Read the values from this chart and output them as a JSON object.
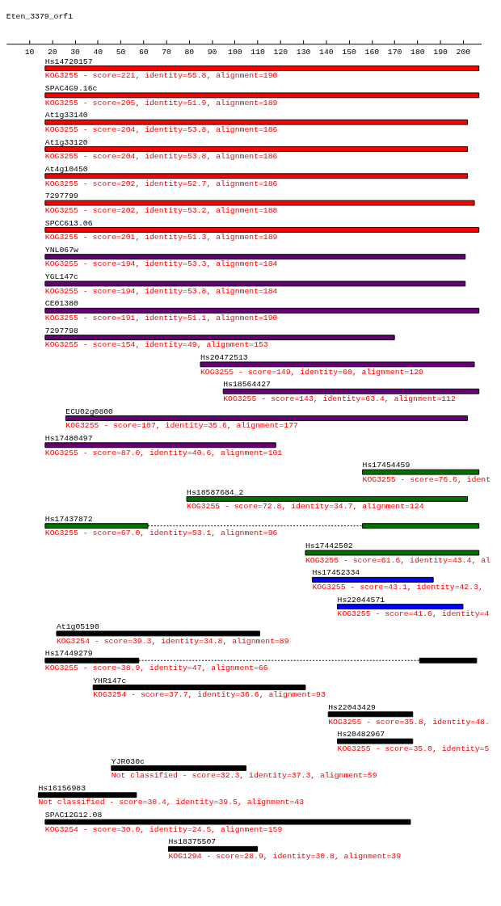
{
  "chart_data": {
    "type": "bar",
    "orientation": "horizontal",
    "title": "Eten_3379_orf1",
    "categories": [
      "Hs14720157",
      "SPAC4G9.16c",
      "At1g33140",
      "At1g33120",
      "At4g10450",
      "7297799",
      "SPCC613.06",
      "YNL067w",
      "YGL147c",
      "CE01380",
      "7297798",
      "Hs20472513",
      "Hs18564427",
      "ECU02g0800",
      "Hs17480497",
      "Hs17454459",
      "Hs18587684_2",
      "Hs17437872",
      "Hs17442502",
      "Hs17452334",
      "Hs22044571",
      "At1g05190",
      "Hs17449279",
      "YHR147c",
      "Hs22043429",
      "Hs20482967",
      "YJR030c",
      "Hs16156983",
      "SPAC12G12.08",
      "Hs18375507"
    ],
    "series": [
      {
        "base": [
          17,
          17,
          17,
          17,
          17,
          17,
          17,
          17,
          17,
          17,
          17,
          85,
          95,
          26,
          17,
          156,
          79,
          17,
          131,
          134,
          145,
          22,
          17,
          38,
          141,
          145,
          46,
          14,
          17,
          71
        ],
        "values": [
          190,
          190,
          185,
          185,
          185,
          188,
          190,
          184,
          184,
          190,
          153,
          120,
          112,
          176,
          101,
          51,
          123,
          45,
          76,
          53,
          55,
          89,
          41,
          93,
          37,
          33,
          59,
          43,
          160,
          39
        ],
        "colors": [
          "#ff0000",
          "#ff0000",
          "#ff0000",
          "#ff0000",
          "#ff0000",
          "#ff0000",
          "#ff0000",
          "#660077",
          "#660077",
          "#660077",
          "#660077",
          "#660077",
          "#660077",
          "#660077",
          "#660077",
          "#007000",
          "#007000",
          "#007000",
          "#007000",
          "#0000ff",
          "#0000ff",
          "#000000",
          "#000000",
          "#000000",
          "#000000",
          "#000000",
          "#000000",
          "#000000",
          "#000000",
          "#000000"
        ]
      },
      {
        "base": [
          null,
          null,
          null,
          null,
          null,
          null,
          null,
          null,
          null,
          null,
          null,
          null,
          null,
          null,
          null,
          null,
          null,
          156,
          null,
          null,
          null,
          null,
          181,
          null,
          null,
          null,
          null,
          null,
          null,
          null
        ],
        "values": [
          null,
          null,
          null,
          null,
          null,
          null,
          null,
          null,
          null,
          null,
          null,
          null,
          null,
          null,
          null,
          null,
          null,
          51,
          null,
          null,
          null,
          null,
          25,
          null,
          null,
          null,
          null,
          null,
          null,
          null
        ],
        "colors": [
          null,
          null,
          null,
          null,
          null,
          null,
          null,
          null,
          null,
          null,
          null,
          null,
          null,
          null,
          null,
          null,
          null,
          "#007000",
          null,
          null,
          null,
          null,
          "#000000",
          null,
          null,
          null,
          null,
          null,
          null,
          null
        ]
      }
    ],
    "xlim": [
      0,
      208
    ],
    "xticks": [
      10,
      20,
      30,
      40,
      50,
      60,
      70,
      80,
      90,
      100,
      110,
      120,
      130,
      140,
      150,
      160,
      170,
      180,
      190,
      200
    ],
    "annotations": [
      {
        "text": "KOG3255 - score=221, identity=55.8, alignment=190",
        "x": 17,
        "y": "Hs14720157"
      },
      {
        "text": "KOG3255 - score=205, identity=51.9, alignment=189",
        "x": 17,
        "y": "SPAC4G9.16c"
      },
      {
        "text": "KOG3255 - score=204, identity=53.8, alignment=186",
        "x": 17,
        "y": "At1g33140"
      },
      {
        "text": "KOG3255 - score=204, identity=53.8, alignment=186",
        "x": 17,
        "y": "At1g33120"
      },
      {
        "text": "KOG3255 - score=202, identity=52.7, alignment=186",
        "x": 17,
        "y": "At4g10450"
      },
      {
        "text": "KOG3255 - score=202, identity=53.2, alignment=188",
        "x": 17,
        "y": "7297799"
      },
      {
        "text": "KOG3255 - score=201, identity=51.3, alignment=189",
        "x": 17,
        "y": "SPCC613.06"
      },
      {
        "text": "KOG3255 - score=194, identity=53.3, alignment=184",
        "x": 17,
        "y": "YNL067w"
      },
      {
        "text": "KOG3255 - score=194, identity=53.8, alignment=184",
        "x": 17,
        "y": "YGL147c"
      },
      {
        "text": "KOG3255 - score=191, identity=51.1, alignment=190",
        "x": 17,
        "y": "CE01380"
      },
      {
        "text": "KOG3255 - score=154, identity=49, alignment=153",
        "x": 17,
        "y": "7297798"
      },
      {
        "text": "KOG3255 - score=149, identity=60, alignment=120",
        "x": 85,
        "y": "Hs20472513"
      },
      {
        "text": "KOG3255 - score=143, identity=63.4, alignment=112",
        "x": 95,
        "y": "Hs18564427"
      },
      {
        "text": "KOG3255 - score=107, identity=35.6, alignment=177",
        "x": 26,
        "y": "ECU02g0800"
      },
      {
        "text": "KOG3255 - score=87.0, identity=40.6, alignment=101",
        "x": 17,
        "y": "Hs17480497"
      },
      {
        "text": "KOG3255 - score=76.6, ident",
        "x": 156,
        "y": "Hs17454459"
      },
      {
        "text": "KOG3255 - score=72.8, identity=34.7, alignment=124",
        "x": 79,
        "y": "Hs18587684_2"
      },
      {
        "text": "KOG3255 - score=67.0, identity=53.1, alignment=96",
        "x": 17,
        "y": "Hs17437872"
      },
      {
        "text": "KOG3255 - score=61.6, identity=43.4, al",
        "x": 131,
        "y": "Hs17442502"
      },
      {
        "text": "KOG3255 - score=43.1, identity=42.3,",
        "x": 134,
        "y": "Hs17452334"
      },
      {
        "text": "KOG3255 - score=41.6, identity=4",
        "x": 145,
        "y": "Hs22044571"
      },
      {
        "text": "KOG3254 - score=39.3, identity=34.8, alignment=89",
        "x": 22,
        "y": "At1g05190"
      },
      {
        "text": "KOG3255 - score=38.9, identity=47, alignment=66",
        "x": 17,
        "y": "Hs17449279"
      },
      {
        "text": "KOG3254 - score=37.7, identity=36.6, alignment=93",
        "x": 38,
        "y": "YHR147c"
      },
      {
        "text": "KOG3255 - score=35.8, identity=48.",
        "x": 141,
        "y": "Hs22043429"
      },
      {
        "text": "KOG3255 - score=35.0, identity=5",
        "x": 145,
        "y": "Hs20482967"
      },
      {
        "text": "Not classified - score=32.3, identity=37.3, alignment=59",
        "x": 46,
        "y": "YJR030c"
      },
      {
        "text": "Not classified - score=30.4, identity=39.5, alignment=43",
        "x": 14,
        "y": "Hs16156983"
      },
      {
        "text": "KOG3254 - score=30.0, identity=24.5, alignment=159",
        "x": 17,
        "y": "SPAC12G12.08"
      },
      {
        "text": "KOG1294 - score=28.9, identity=30.8, alignment=39",
        "x": 71,
        "y": "Hs18375507"
      }
    ]
  }
}
